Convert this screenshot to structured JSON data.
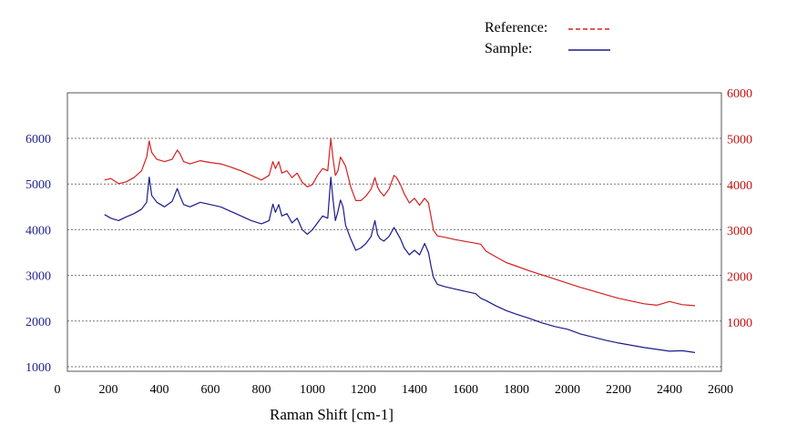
{
  "chart_data": {
    "type": "line",
    "title": "",
    "xlabel": "Raman Shift [cm-1]",
    "ylabel_left": "",
    "ylabel_right": "",
    "xlim": [
      0,
      2600
    ],
    "x_ticks": [
      0,
      200,
      400,
      600,
      800,
      1000,
      1200,
      1400,
      1600,
      1800,
      2000,
      2200,
      2400,
      2600
    ],
    "y_left_lim": [
      900,
      6900
    ],
    "y_left_ticks": [
      1000,
      2000,
      3000,
      4000,
      5000,
      6000
    ],
    "y_right_lim": [
      100,
      6000
    ],
    "y_right_ticks": [
      1000,
      2000,
      3000,
      4000,
      5000,
      6000
    ],
    "grid": "horizontal dotted",
    "legend_position": "top-right",
    "colors": {
      "reference": "#d42020",
      "sample": "#1a1a8c",
      "grid": "#777777"
    },
    "series": [
      {
        "name": "Reference:",
        "axis": "right",
        "style": "dashed",
        "color": "#d42020",
        "x": [
          185,
          210,
          240,
          270,
          300,
          330,
          350,
          360,
          370,
          390,
          420,
          450,
          470,
          480,
          495,
          520,
          560,
          600,
          640,
          680,
          720,
          760,
          800,
          830,
          845,
          855,
          868,
          880,
          900,
          920,
          940,
          960,
          980,
          1000,
          1020,
          1040,
          1060,
          1072,
          1080,
          1090,
          1100,
          1110,
          1120,
          1130,
          1150,
          1170,
          1190,
          1210,
          1230,
          1245,
          1255,
          1265,
          1280,
          1300,
          1320,
          1330,
          1345,
          1360,
          1380,
          1400,
          1420,
          1440,
          1455,
          1465,
          1475,
          1490,
          1520,
          1560,
          1600,
          1640,
          1660,
          1680,
          1720,
          1760,
          1800,
          1850,
          1900,
          1950,
          2000,
          2050,
          2100,
          2150,
          2200,
          2250,
          2300,
          2350,
          2400,
          2450,
          2500
        ],
        "y": [
          4100,
          4130,
          4020,
          4060,
          4150,
          4300,
          4600,
          4950,
          4700,
          4550,
          4500,
          4550,
          4750,
          4680,
          4500,
          4450,
          4520,
          4480,
          4450,
          4380,
          4300,
          4200,
          4100,
          4200,
          4500,
          4350,
          4500,
          4250,
          4300,
          4150,
          4250,
          4050,
          3950,
          4000,
          4200,
          4350,
          4300,
          5000,
          4600,
          4200,
          4300,
          4600,
          4500,
          4400,
          3950,
          3650,
          3650,
          3750,
          3900,
          4150,
          3950,
          3850,
          3750,
          3900,
          4200,
          4150,
          4000,
          3800,
          3600,
          3700,
          3550,
          3700,
          3600,
          3300,
          3000,
          2880,
          2850,
          2800,
          2760,
          2720,
          2700,
          2550,
          2420,
          2300,
          2220,
          2120,
          2030,
          1940,
          1850,
          1760,
          1680,
          1600,
          1520,
          1460,
          1400,
          1370,
          1450,
          1380,
          1360
        ]
      },
      {
        "name": "Sample:",
        "axis": "left",
        "style": "solid",
        "color": "#1a1a8c",
        "x": [
          185,
          210,
          240,
          270,
          300,
          330,
          350,
          360,
          370,
          390,
          420,
          450,
          470,
          480,
          495,
          520,
          560,
          600,
          640,
          680,
          720,
          760,
          800,
          830,
          845,
          855,
          868,
          880,
          900,
          920,
          940,
          960,
          980,
          1000,
          1020,
          1040,
          1060,
          1072,
          1080,
          1090,
          1100,
          1110,
          1120,
          1130,
          1150,
          1170,
          1190,
          1210,
          1230,
          1245,
          1255,
          1265,
          1280,
          1300,
          1320,
          1330,
          1345,
          1360,
          1380,
          1400,
          1420,
          1440,
          1455,
          1465,
          1475,
          1490,
          1520,
          1560,
          1600,
          1640,
          1660,
          1680,
          1720,
          1760,
          1800,
          1850,
          1900,
          1950,
          2000,
          2050,
          2100,
          2150,
          2200,
          2250,
          2300,
          2350,
          2400,
          2450,
          2500
        ],
        "y": [
          4330,
          4250,
          4200,
          4280,
          4350,
          4450,
          4600,
          5150,
          4750,
          4600,
          4500,
          4620,
          4900,
          4750,
          4550,
          4500,
          4600,
          4550,
          4500,
          4400,
          4300,
          4200,
          4130,
          4200,
          4560,
          4380,
          4550,
          4300,
          4350,
          4150,
          4250,
          4000,
          3900,
          4000,
          4150,
          4300,
          4250,
          5150,
          4700,
          4200,
          4400,
          4650,
          4500,
          4100,
          3800,
          3550,
          3600,
          3700,
          3850,
          4200,
          3900,
          3800,
          3750,
          3850,
          4050,
          3950,
          3800,
          3600,
          3450,
          3550,
          3450,
          3700,
          3500,
          3200,
          2950,
          2800,
          2750,
          2700,
          2650,
          2600,
          2500,
          2450,
          2330,
          2230,
          2150,
          2060,
          1960,
          1880,
          1820,
          1720,
          1650,
          1580,
          1520,
          1470,
          1420,
          1380,
          1340,
          1350,
          1310
        ]
      }
    ]
  }
}
